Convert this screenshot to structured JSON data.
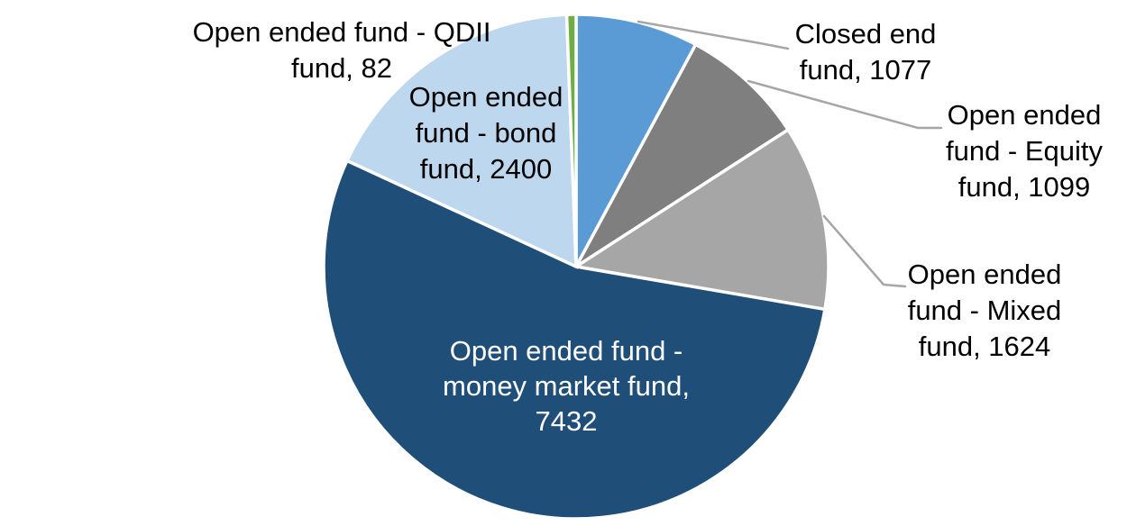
{
  "chart_data": {
    "type": "pie",
    "title": "",
    "legend_position": "none",
    "direction": "clockwise",
    "start_angle_deg": 0,
    "total": 13714,
    "slices": [
      {
        "id": "closed-end-fund",
        "label": "Closed end fund",
        "value": 1077,
        "color": "#5B9BD5"
      },
      {
        "id": "equity-fund",
        "label": "Open ended fund - Equity fund",
        "value": 1099,
        "color": "#7F7F7F"
      },
      {
        "id": "mixed-fund",
        "label": "Open ended fund - Mixed fund",
        "value": 1624,
        "color": "#A6A6A6"
      },
      {
        "id": "money-market-fund",
        "label": "Open ended fund - money market fund",
        "value": 7432,
        "color": "#1F4E79"
      },
      {
        "id": "bond-fund",
        "label": "Open ended fund - bond fund",
        "value": 2400,
        "color": "#BDD7EE"
      },
      {
        "id": "qdii-fund",
        "label": "Open ended fund - QDII fund",
        "value": 82,
        "color": "#70AD47"
      }
    ]
  },
  "labels": {
    "qdii": "Open ended fund - QDII\nfund, 82",
    "bond": "Open ended\nfund - bond\nfund, 2400",
    "closed": "Closed end\nfund, 1077",
    "equity": "Open ended\nfund - Equity\nfund, 1099",
    "mixed": "Open ended\nfund - Mixed\nfund, 1624",
    "money": "Open ended fund -\nmoney market fund,\n7432"
  },
  "colors": {
    "background": "#FFFFFF",
    "leader_line": "#A6A6A6",
    "label_text": "#000000",
    "inside_label_text": "#FFFFFF",
    "slice_border": "#FFFFFF"
  }
}
